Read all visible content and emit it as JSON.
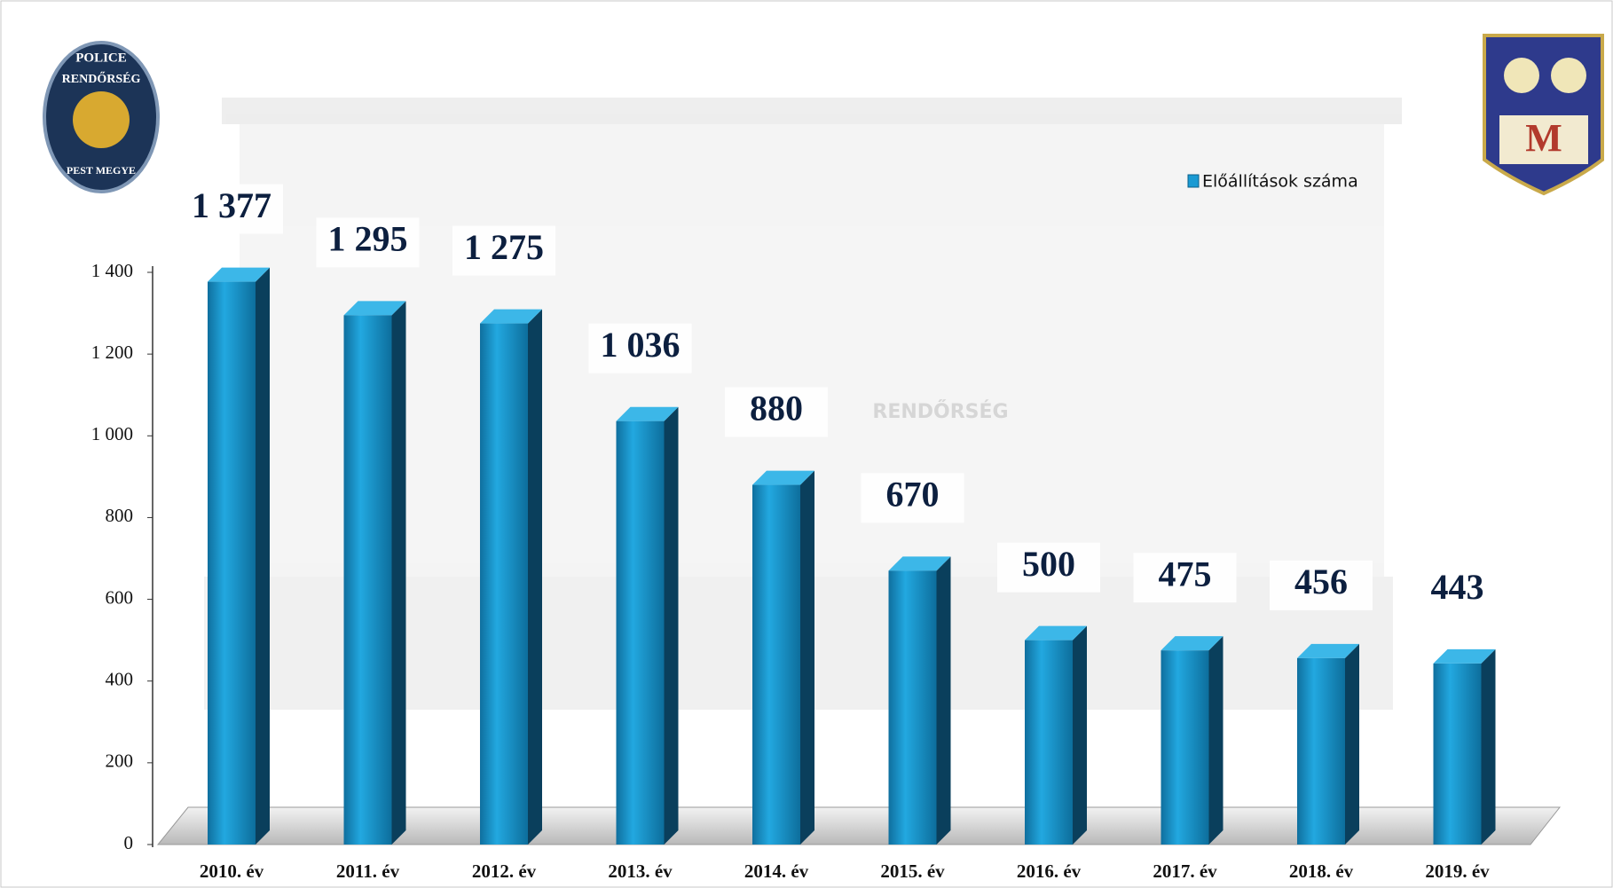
{
  "chart_data": {
    "type": "bar",
    "categories": [
      "2010. év",
      "2011. év",
      "2012. év",
      "2013. év",
      "2014. év",
      "2015. év",
      "2016. év",
      "2017. év",
      "2018. év",
      "2019. év"
    ],
    "series": [
      {
        "name": "Előállítások száma",
        "color": "#1a9ad3",
        "values": [
          1377,
          1295,
          1275,
          1036,
          880,
          670,
          500,
          475,
          456,
          443
        ],
        "value_labels": [
          "1 377",
          "1 295",
          "1 275",
          "1 036",
          "880",
          "670",
          "500",
          "475",
          "456",
          "443"
        ]
      }
    ],
    "ylim": [
      0,
      1400
    ],
    "yticks": [
      0,
      200,
      400,
      600,
      800,
      {
        "value": 1000,
        "label": "1 000"
      },
      {
        "value": 1200,
        "label": "1 200"
      },
      {
        "value": 1400,
        "label": "1 400"
      }
    ],
    "legend": "top-right"
  },
  "badge_left": {
    "top": "POLICE",
    "middle": "RENDŐRSÉG",
    "bottom": "PEST MEGYE"
  },
  "badge_right": "M",
  "background_sign": "RENDŐRSÉG"
}
